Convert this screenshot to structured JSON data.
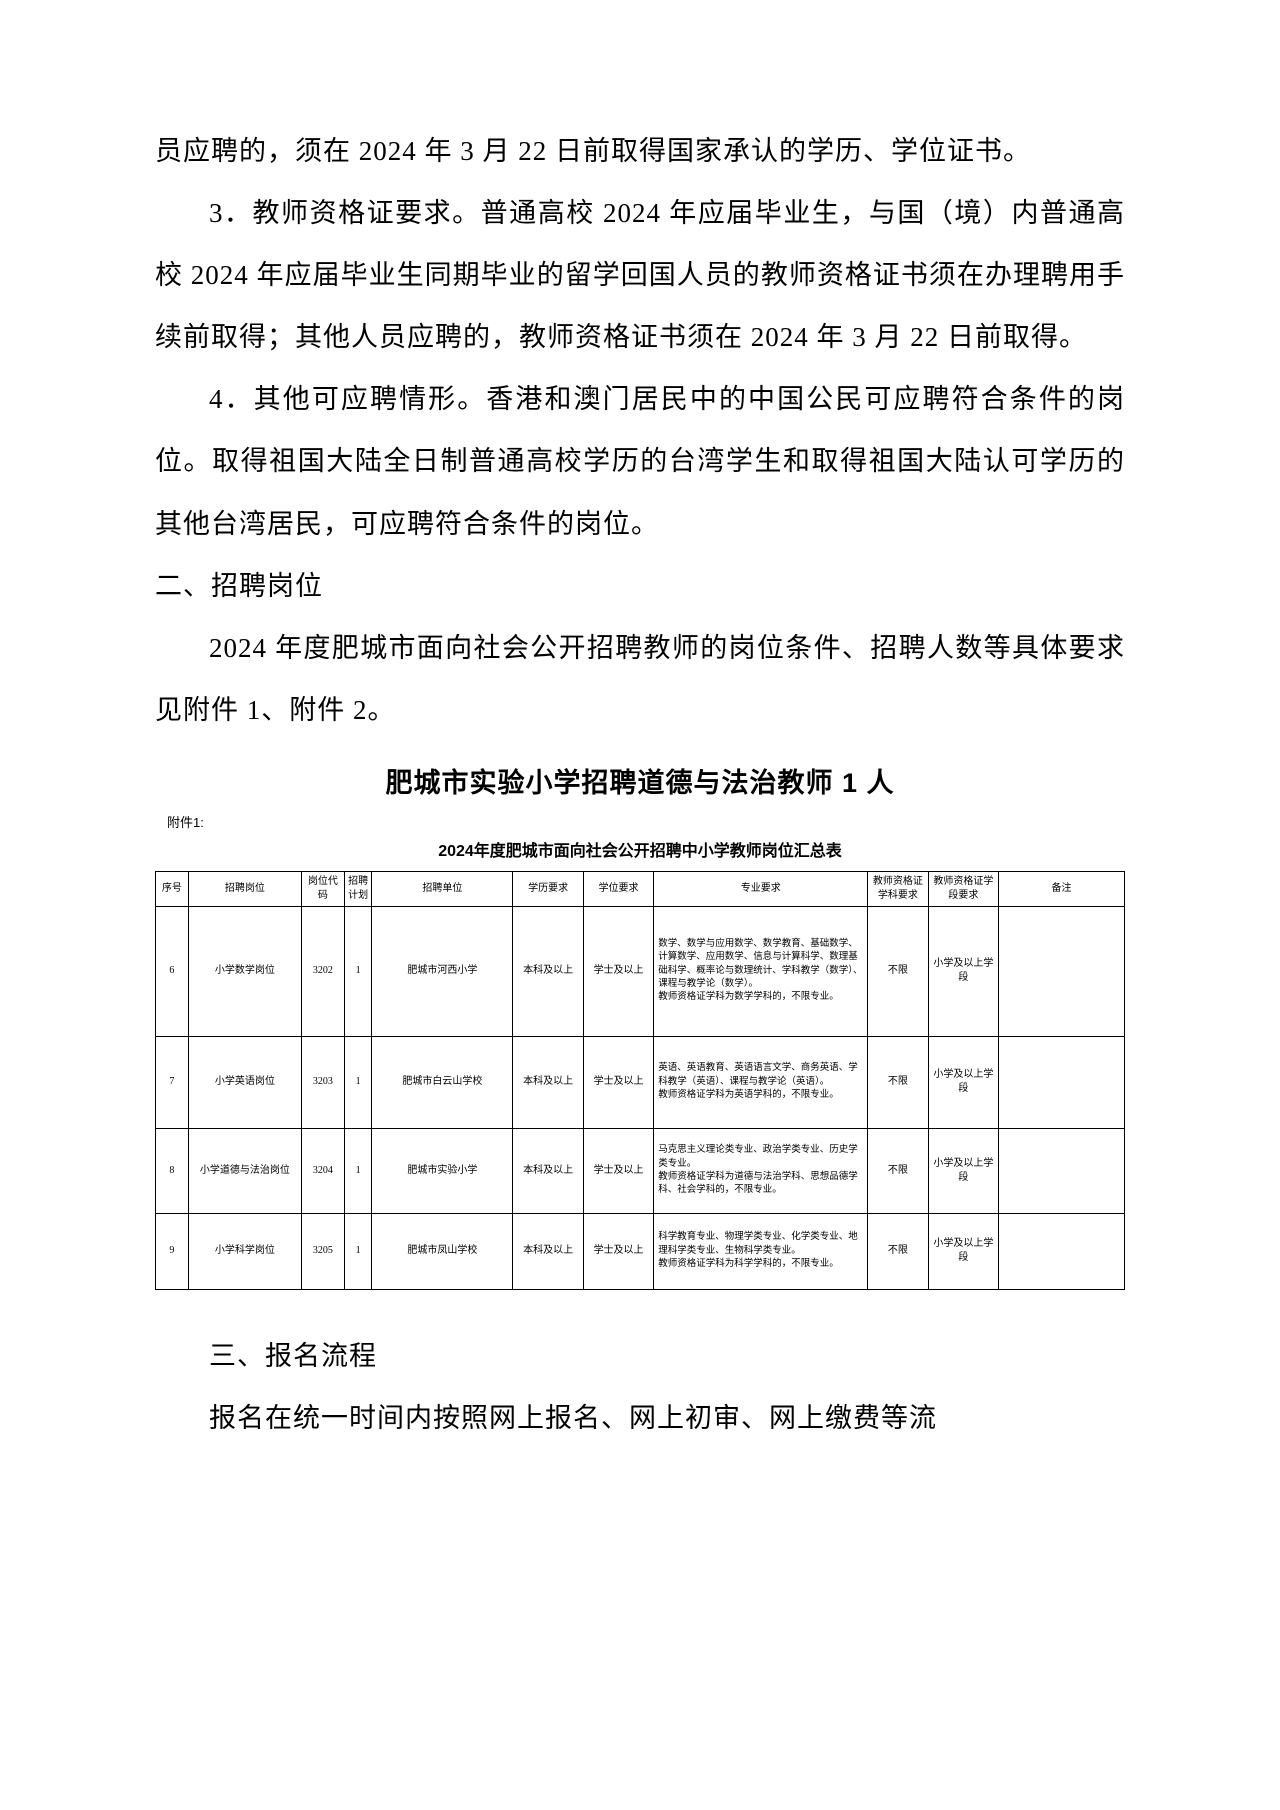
{
  "paragraphs": {
    "p1": "员应聘的，须在 2024 年 3 月 22 日前取得国家承认的学历、学位证书。",
    "p2": "3．教师资格证要求。普通高校 2024 年应届毕业生，与国（境）内普通高校 2024 年应届毕业生同期毕业的留学回国人员的教师资格证书须在办理聘用手续前取得；其他人员应聘的，教师资格证书须在 2024 年 3 月 22 日前取得。",
    "p3": "4．其他可应聘情形。香港和澳门居民中的中国公民可应聘符合条件的岗位。取得祖国大陆全日制普通高校学历的台湾学生和取得祖国大陆认可学历的其他台湾居民，可应聘符合条件的岗位。",
    "h_section2": "二、招聘岗位",
    "p4": "2024 年度肥城市面向社会公开招聘教师的岗位条件、招聘人数等具体要求见附件 1、附件 2。",
    "heading_bold": "肥城市实验小学招聘道德与法治教师 1 人",
    "h_section3": "三、报名流程",
    "p5": "报名在统一时间内按照网上报名、网上初审、网上缴费等流"
  },
  "attachment_label": "附件1:",
  "table_title": "2024年度肥城市面向社会公开招聘中小学教师岗位汇总表",
  "table": {
    "headers": [
      "序号",
      "招聘岗位",
      "岗位代码",
      "招聘计划",
      "招聘单位",
      "学历要求",
      "学位要求",
      "专业要求",
      "教师资格证学科要求",
      "教师资格证学段要求",
      "备注"
    ],
    "rows": [
      {
        "seq": "6",
        "position": "小学数学岗位",
        "code": "3202",
        "plan": "1",
        "unit": "肥城市河西小学",
        "edu": "本科及以上",
        "degree": "学士及以上",
        "major": "数学、数学与应用数学、数学教育、基础数学、计算数学、应用数学、信息与计算科学、数理基础科学、概率论与数理统计、学科教学（数学）、课程与教学论（数学）。\n教师资格证学科为数学学科的，不限专业。",
        "cert_subj": "不限",
        "cert_stage": "小学及以上学段",
        "remark": ""
      },
      {
        "seq": "7",
        "position": "小学英语岗位",
        "code": "3203",
        "plan": "1",
        "unit": "肥城市白云山学校",
        "edu": "本科及以上",
        "degree": "学士及以上",
        "major": "英语、英语教育、英语语言文学、商务英语、学科教学（英语）、课程与教学论（英语）。\n教师资格证学科为英语学科的，不限专业。",
        "cert_subj": "不限",
        "cert_stage": "小学及以上学段",
        "remark": ""
      },
      {
        "seq": "8",
        "position": "小学道德与法治岗位",
        "code": "3204",
        "plan": "1",
        "unit": "肥城市实验小学",
        "edu": "本科及以上",
        "degree": "学士及以上",
        "major": "马克思主义理论类专业、政治学类专业、历史学类专业。\n教师资格证学科为道德与法治学科、思想品德学科、社会学科的，不限专业。",
        "cert_subj": "不限",
        "cert_stage": "小学及以上学段",
        "remark": ""
      },
      {
        "seq": "9",
        "position": "小学科学岗位",
        "code": "3205",
        "plan": "1",
        "unit": "肥城市凤山学校",
        "edu": "本科及以上",
        "degree": "学士及以上",
        "major": "科学教育专业、物理学类专业、化学类专业、地理科学类专业、生物科学类专业。\n教师资格证学科为科学学科的，不限专业。",
        "cert_subj": "不限",
        "cert_stage": "小学及以上学段",
        "remark": ""
      }
    ]
  }
}
